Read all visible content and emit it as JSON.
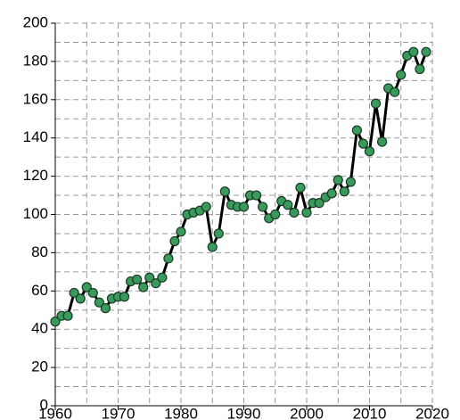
{
  "chart_data": {
    "type": "line",
    "x": [
      1960,
      1961,
      1962,
      1963,
      1964,
      1965,
      1966,
      1967,
      1968,
      1969,
      1970,
      1971,
      1972,
      1973,
      1974,
      1975,
      1976,
      1977,
      1978,
      1979,
      1980,
      1981,
      1982,
      1983,
      1984,
      1985,
      1986,
      1987,
      1988,
      1989,
      1990,
      1991,
      1992,
      1993,
      1994,
      1995,
      1996,
      1997,
      1998,
      1999,
      2000,
      2001,
      2002,
      2003,
      2004,
      2005,
      2006,
      2007,
      2008,
      2009,
      2010,
      2011,
      2012,
      2013,
      2014,
      2015,
      2016,
      2017,
      2018,
      2019
    ],
    "values": [
      44,
      47,
      47,
      59,
      56,
      62,
      59,
      54,
      51,
      56,
      57,
      57,
      65,
      66,
      62,
      67,
      64,
      67,
      77,
      86,
      91,
      100,
      101,
      102,
      104,
      83,
      90,
      112,
      105,
      104,
      104,
      110,
      110,
      104,
      98,
      100,
      107,
      105,
      101,
      114,
      101,
      106,
      106,
      109,
      111,
      118,
      112,
      117,
      144,
      137,
      133,
      158,
      138,
      166,
      164,
      173,
      183,
      185,
      176,
      185
    ],
    "color": "#3a9a5c",
    "line_color": "#000000",
    "xlim": [
      1960,
      2020
    ],
    "xticks": [
      1960,
      1970,
      1980,
      1990,
      2000,
      2010,
      2020
    ],
    "ylim": [
      0,
      200
    ],
    "yticks": [
      0,
      20,
      40,
      60,
      80,
      100,
      120,
      140,
      160,
      180,
      200
    ],
    "grid": true
  }
}
